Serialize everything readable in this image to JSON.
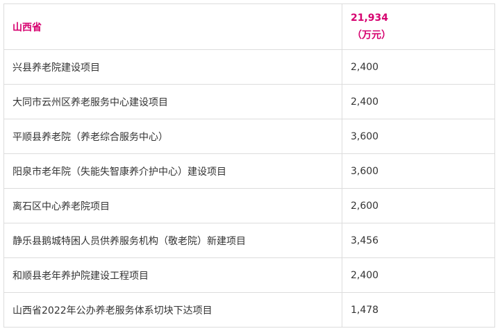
{
  "header": {
    "name": "山西省",
    "total": "21,934",
    "unit": "（万元）"
  },
  "accent_color": "#d6006f",
  "rows": [
    {
      "name": "兴县养老院建设项目",
      "amount": "2,400"
    },
    {
      "name": "大同市云州区养老服务中心建设项目",
      "amount": "2,400"
    },
    {
      "name": "平顺县养老院（养老综合服务中心）",
      "amount": "3,600"
    },
    {
      "name": "阳泉市老年院（失能失智康养介护中心）建设项目",
      "amount": "3,600"
    },
    {
      "name": "离石区中心养老院项目",
      "amount": "2,600"
    },
    {
      "name": "静乐县鹅城特困人员供养服务机构（敬老院）新建项目",
      "amount": "3,456"
    },
    {
      "name": "和顺县老年养护院建设工程项目",
      "amount": "2,400"
    },
    {
      "name": "山西省2022年公办养老服务体系切块下达项目",
      "amount": "1,478"
    }
  ]
}
